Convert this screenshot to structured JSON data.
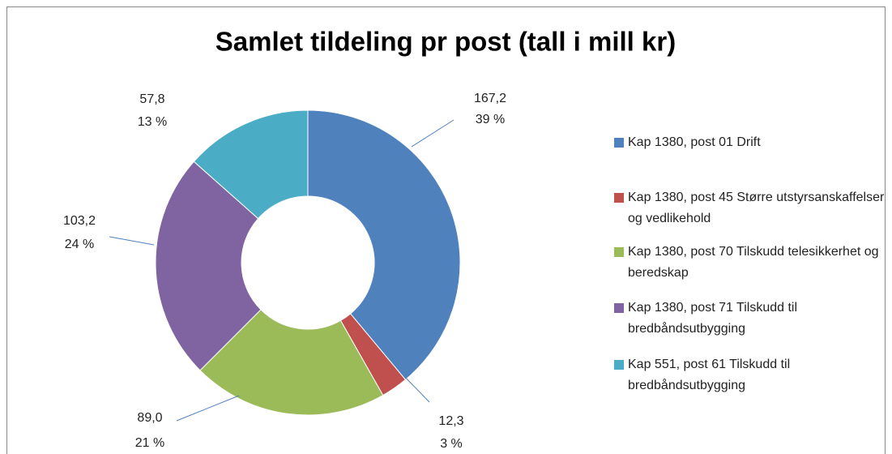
{
  "chart_data": {
    "type": "donut",
    "title": "Samlet tildeling pr post (tall i mill kr)",
    "categories": [
      "Kap 1380, post 01 Drift",
      "Kap 1380, post 45 Større utstyrsanskaffelser og vedlikehold",
      "Kap 1380, post 70 Tilskudd telesikkerhet og beredskap",
      "Kap 1380, post 71 Tilskudd til bredbåndsutbygging",
      "Kap 551, post 61 Tilskudd til bredbåndsutbygging"
    ],
    "values": [
      167.2,
      12.3,
      89.0,
      103.2,
      57.8
    ],
    "value_labels": [
      "167,2",
      "12,3",
      "89,0",
      "103,2",
      "57,8"
    ],
    "percents": [
      39,
      3,
      21,
      24,
      13
    ],
    "percent_labels": [
      "39 %",
      "3 %",
      "21 %",
      "24 %",
      "13 %"
    ],
    "colors": [
      "#4f81bd",
      "#c0504d",
      "#9bbb59",
      "#8064a2",
      "#4bacc6"
    ],
    "legend": "right"
  }
}
